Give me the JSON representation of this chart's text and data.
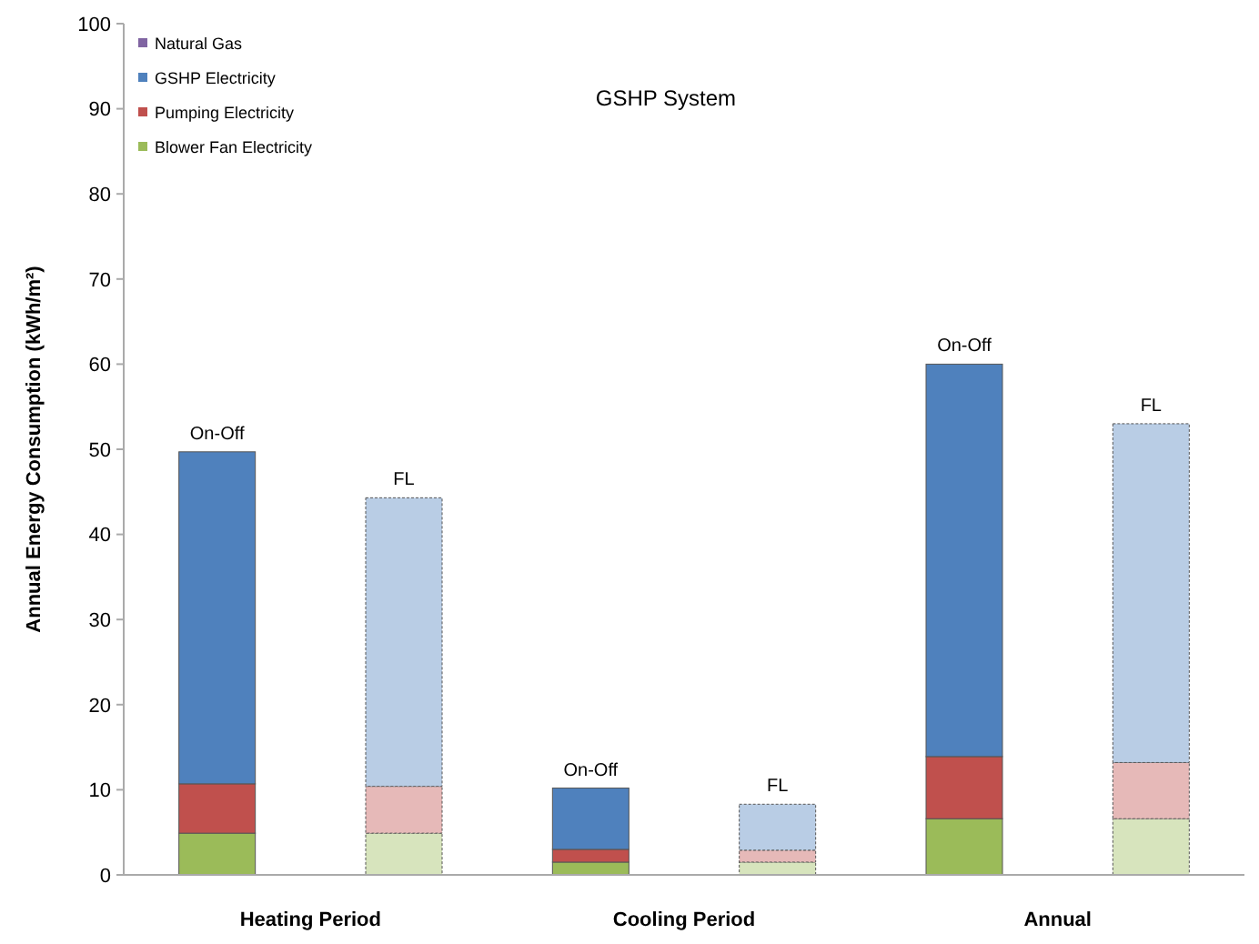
{
  "chart_data": {
    "type": "bar",
    "title": "GSHP System",
    "ylabel": "Annual Energy Consumption (kWh/m²)",
    "stacked": true,
    "categories": [
      "On-Off",
      "FL",
      "On-Off",
      "FL",
      "On-Off",
      "FL"
    ],
    "annotations": [
      "Heating Period",
      "Cooling Period",
      "Annual"
    ],
    "series": [
      {
        "name": "Blower Fan Electricity",
        "color": "#9bbb59",
        "colors": [
          "#9bbb59",
          "#d7e4bd",
          "#9bbb59",
          "#d7e4bd",
          "#9bbb59",
          "#d7e4bd"
        ],
        "values": [
          4.9,
          4.9,
          1.5,
          1.5,
          6.6,
          6.6
        ]
      },
      {
        "name": "Pumping Electricity",
        "color": "#c0504d",
        "colors": [
          "#c0504d",
          "#e6b9b8",
          "#c0504d",
          "#e6b9b8",
          "#c0504d",
          "#e6b9b8"
        ],
        "values": [
          5.8,
          5.5,
          1.5,
          1.4,
          7.3,
          6.6
        ]
      },
      {
        "name": "GSHP Electricity",
        "color": "#4f81bd",
        "colors": [
          "#4f81bd",
          "#b9cde5",
          "#4f81bd",
          "#b9cde5",
          "#4f81bd",
          "#b9cde5"
        ],
        "values": [
          39,
          33.9,
          7.2,
          5.4,
          46.1,
          39.8
        ]
      },
      {
        "name": "Natural Gas",
        "color": "#8064a2",
        "colors": [
          "#8064a2",
          "#ccc1da",
          "#8064a2",
          "#ccc1da",
          "#8064a2",
          "#ccc1da"
        ],
        "values": [
          0,
          0,
          0,
          0,
          0,
          0
        ]
      }
    ],
    "ylim": [
      0,
      100
    ],
    "yticks": [
      0,
      10,
      20,
      30,
      40,
      50,
      60,
      70,
      80,
      90,
      100
    ],
    "grid": false,
    "legend": "top left"
  }
}
